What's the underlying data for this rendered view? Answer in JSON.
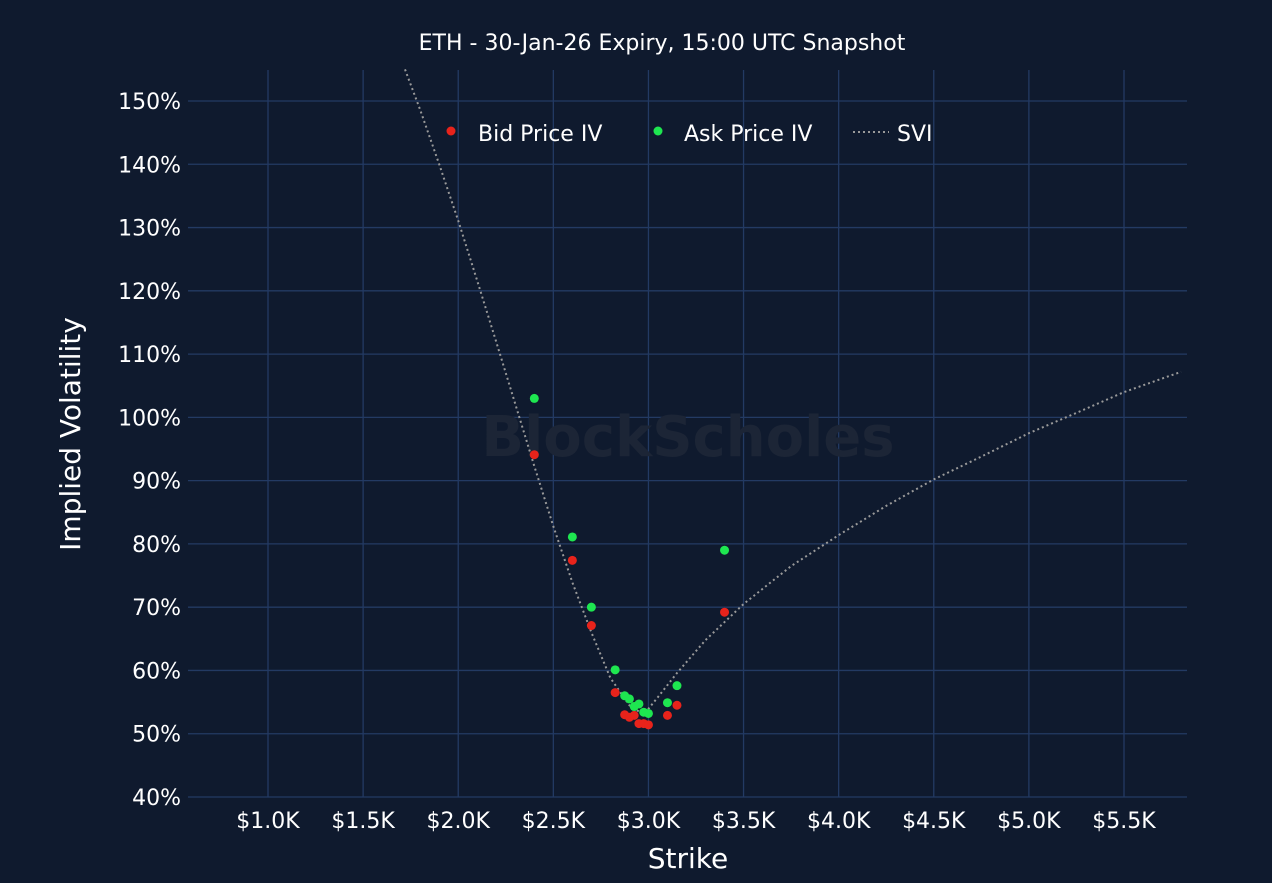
{
  "chart_data": {
    "type": "scatter",
    "title": "ETH - 30-Jan-26 Expiry, 15:00 UTC Snapshot",
    "xlabel": "Strike",
    "ylabel": "Implied Volatility",
    "watermark": "BlockScholes",
    "xlim": [
      500,
      5800
    ],
    "ylim": [
      40,
      155
    ],
    "x_ticks": [
      1000,
      1500,
      2000,
      2500,
      3000,
      3500,
      4000,
      4500,
      5000,
      5500
    ],
    "x_tick_labels": [
      "$1.0K",
      "$1.5K",
      "$2.0K",
      "$2.5K",
      "$3.0K",
      "$3.5K",
      "$4.0K",
      "$4.5K",
      "$5.0K",
      "$5.5K"
    ],
    "y_ticks": [
      40,
      50,
      60,
      70,
      80,
      90,
      100,
      110,
      120,
      130,
      140,
      150
    ],
    "y_tick_labels": [
      "40%",
      "50%",
      "60%",
      "70%",
      "80%",
      "90%",
      "100%",
      "110%",
      "120%",
      "130%",
      "140%",
      "150%"
    ],
    "grid": true,
    "legend_position": "top-center",
    "series": [
      {
        "name": "Bid Price IV",
        "kind": "markers",
        "color": "#e8231b",
        "points": [
          {
            "x": 2400,
            "y": 94.1
          },
          {
            "x": 2600,
            "y": 77.4
          },
          {
            "x": 2700,
            "y": 67.1
          },
          {
            "x": 2825,
            "y": 56.5
          },
          {
            "x": 2875,
            "y": 53.0
          },
          {
            "x": 2900,
            "y": 52.6
          },
          {
            "x": 2925,
            "y": 52.9
          },
          {
            "x": 2950,
            "y": 51.6
          },
          {
            "x": 2975,
            "y": 51.6
          },
          {
            "x": 3000,
            "y": 51.4
          },
          {
            "x": 3100,
            "y": 52.9
          },
          {
            "x": 3150,
            "y": 54.5
          },
          {
            "x": 3400,
            "y": 69.2
          }
        ]
      },
      {
        "name": "Ask Price IV",
        "kind": "markers",
        "color": "#1ee650",
        "points": [
          {
            "x": 2400,
            "y": 103.0
          },
          {
            "x": 2600,
            "y": 81.1
          },
          {
            "x": 2700,
            "y": 70.0
          },
          {
            "x": 2825,
            "y": 60.1
          },
          {
            "x": 2875,
            "y": 56.0
          },
          {
            "x": 2900,
            "y": 55.5
          },
          {
            "x": 2925,
            "y": 54.3
          },
          {
            "x": 2950,
            "y": 54.7
          },
          {
            "x": 2975,
            "y": 53.4
          },
          {
            "x": 3000,
            "y": 53.2
          },
          {
            "x": 3100,
            "y": 54.9
          },
          {
            "x": 3150,
            "y": 57.6
          },
          {
            "x": 3400,
            "y": 79.0
          }
        ]
      },
      {
        "name": "SVI",
        "kind": "dotted-line",
        "color": "#9a9a9a",
        "points": [
          {
            "x": 1720,
            "y": 155.0
          },
          {
            "x": 1800,
            "y": 148.6
          },
          {
            "x": 1900,
            "y": 140.0
          },
          {
            "x": 2000,
            "y": 131.1
          },
          {
            "x": 2100,
            "y": 121.6
          },
          {
            "x": 2200,
            "y": 111.9
          },
          {
            "x": 2300,
            "y": 102.1
          },
          {
            "x": 2400,
            "y": 92.3
          },
          {
            "x": 2500,
            "y": 82.8
          },
          {
            "x": 2600,
            "y": 73.9
          },
          {
            "x": 2700,
            "y": 66.0
          },
          {
            "x": 2800,
            "y": 58.8
          },
          {
            "x": 2900,
            "y": 54.5
          },
          {
            "x": 2975,
            "y": 53.0
          },
          {
            "x": 3050,
            "y": 55.8
          },
          {
            "x": 3150,
            "y": 59.6
          },
          {
            "x": 3300,
            "y": 64.8
          },
          {
            "x": 3500,
            "y": 70.5
          },
          {
            "x": 3750,
            "y": 76.5
          },
          {
            "x": 4000,
            "y": 81.4
          },
          {
            "x": 4250,
            "y": 86.0
          },
          {
            "x": 4500,
            "y": 90.2
          },
          {
            "x": 4750,
            "y": 93.8
          },
          {
            "x": 5000,
            "y": 97.5
          },
          {
            "x": 5250,
            "y": 100.7
          },
          {
            "x": 5500,
            "y": 104.0
          },
          {
            "x": 5800,
            "y": 107.2
          }
        ]
      }
    ]
  }
}
